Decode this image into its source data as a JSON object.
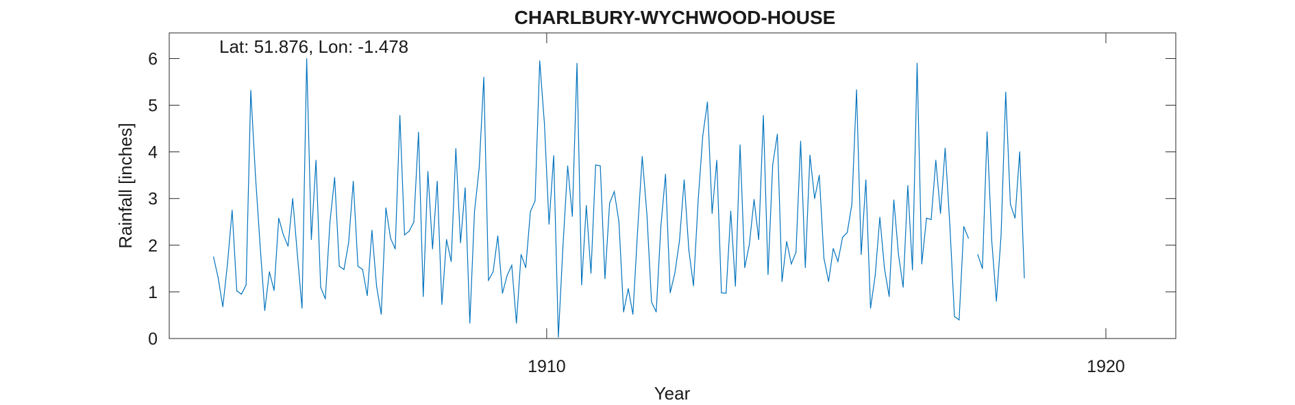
{
  "chart_data": {
    "type": "line",
    "title": "CHARLBURY-WYCHWOOD-HOUSE",
    "annotation": "Lat: 51.876, Lon: -1.478",
    "xlabel": "Year",
    "ylabel": "Rainfall [inches]",
    "xlim": [
      1903.25,
      1921.25
    ],
    "ylim": [
      0,
      6.55
    ],
    "xticks": [
      1910,
      1920
    ],
    "xtick_labels": [
      "1910",
      "1920"
    ],
    "yticks": [
      0,
      1,
      2,
      3,
      4,
      5,
      6
    ],
    "ytick_labels": [
      "0",
      "1",
      "2",
      "3",
      "4",
      "5",
      "6"
    ],
    "grid": false,
    "legend": false,
    "line_color": "#0072BD",
    "start": "1904-01",
    "step": "monthly",
    "values": [
      1.75,
      1.3,
      0.68,
      1.6,
      2.75,
      1.02,
      0.95,
      1.15,
      5.32,
      3.5,
      2.0,
      0.6,
      1.43,
      1.03,
      2.58,
      2.22,
      1.98,
      3.0,
      1.8,
      0.65,
      6.0,
      2.12,
      3.82,
      1.1,
      0.85,
      2.5,
      3.45,
      1.55,
      1.48,
      2.05,
      3.37,
      1.55,
      1.48,
      0.92,
      2.32,
      1.12,
      0.52,
      2.8,
      2.15,
      1.92,
      4.78,
      2.22,
      2.3,
      2.5,
      4.42,
      0.9,
      3.58,
      1.92,
      3.37,
      0.73,
      2.12,
      1.65,
      4.07,
      2.05,
      3.23,
      0.33,
      2.72,
      3.65,
      5.6,
      1.25,
      1.43,
      2.2,
      0.97,
      1.35,
      1.57,
      0.33,
      1.8,
      1.52,
      2.72,
      2.95,
      5.95,
      4.62,
      2.45,
      3.92,
      0.03,
      2.0,
      3.7,
      2.62,
      5.9,
      1.15,
      2.85,
      1.4,
      3.72,
      3.7,
      1.28,
      2.9,
      3.15,
      2.5,
      0.57,
      1.07,
      0.52,
      2.3,
      3.9,
      2.67,
      0.78,
      0.57,
      2.4,
      3.52,
      0.98,
      1.4,
      2.1,
      3.4,
      1.9,
      1.13,
      2.95,
      4.35,
      5.07,
      2.68,
      3.82,
      0.98,
      0.97,
      2.73,
      1.12,
      4.15,
      1.52,
      2.02,
      2.98,
      2.12,
      4.78,
      1.37,
      3.72,
      4.38,
      1.22,
      2.08,
      1.6,
      1.85,
      4.23,
      1.52,
      3.93,
      3.0,
      3.5,
      1.72,
      1.22,
      1.93,
      1.65,
      2.17,
      2.27,
      2.88,
      5.33,
      1.8,
      3.4,
      0.65,
      1.35,
      2.6,
      1.5,
      0.9,
      2.97,
      1.8,
      1.1,
      3.28,
      1.47,
      5.9,
      1.6,
      2.58,
      2.55,
      3.82,
      2.68,
      4.08,
      2.45,
      0.47,
      0.4,
      2.4,
      2.15,
      null,
      1.8,
      1.5,
      4.43,
      2.1,
      0.8,
      2.2,
      5.28,
      2.88,
      2.58,
      4.0,
      1.3
    ]
  }
}
